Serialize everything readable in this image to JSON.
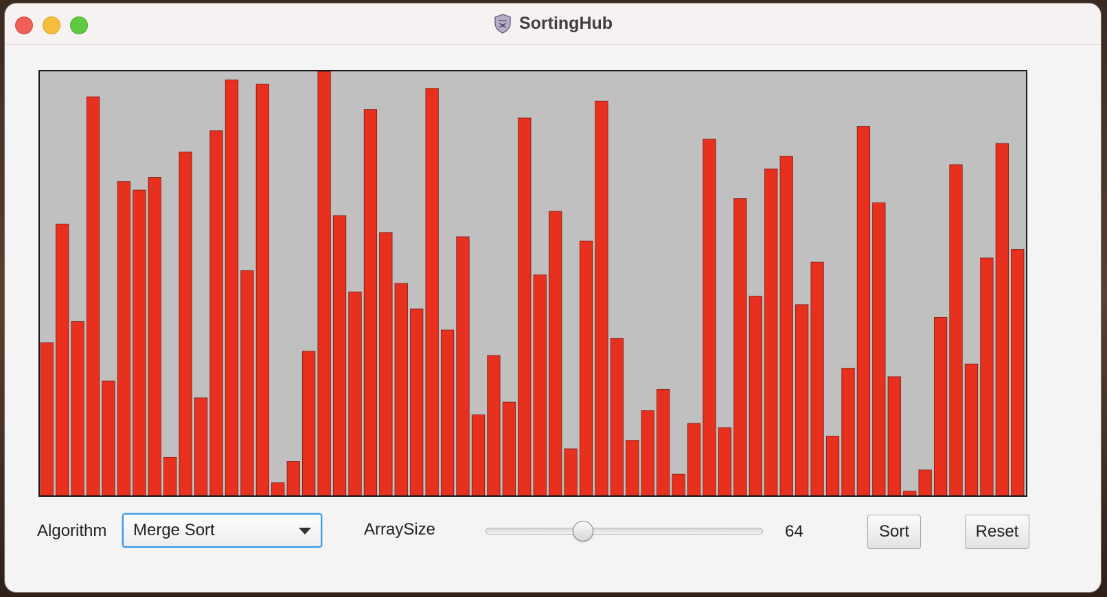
{
  "window": {
    "title": "SortingHub",
    "icon": "shield-icon"
  },
  "controls": {
    "algorithm_label": "Algorithm",
    "algorithm_selected": "Merge Sort",
    "array_size_label": "ArraySize",
    "array_size_value": "64",
    "slider_fraction": 0.34,
    "sort_label": "Sort",
    "reset_label": "Reset"
  },
  "colors": {
    "bar": "#e8301f",
    "bar_edge": "#7a1a10",
    "background": "#c0c0c0",
    "focus": "#3d9be9"
  },
  "chart_data": {
    "type": "bar",
    "ylim": [
      0,
      100
    ],
    "values": [
      36,
      64,
      41,
      94,
      27,
      74,
      72,
      75,
      9,
      81,
      23,
      86,
      98,
      53,
      97,
      3,
      8,
      34,
      100,
      66,
      48,
      91,
      62,
      50,
      44,
      96,
      39,
      61,
      19,
      33,
      22,
      89,
      52,
      67,
      11,
      60,
      93,
      37,
      13,
      20,
      25,
      5,
      17,
      84,
      16,
      70,
      47,
      77,
      80,
      45,
      55,
      14,
      30,
      87,
      69,
      28,
      1,
      6,
      42,
      78,
      31,
      56,
      83,
      58
    ]
  }
}
